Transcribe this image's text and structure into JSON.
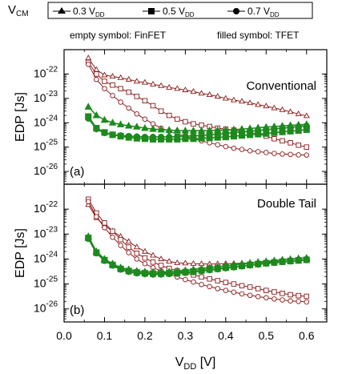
{
  "legend": {
    "title_main": "V",
    "title_sub": "CM",
    "entries": [
      {
        "marker": "triangle",
        "label": "0.3 V",
        "label_sub": "DD"
      },
      {
        "marker": "square",
        "label": "0.5 V",
        "label_sub": "DD"
      },
      {
        "marker": "circle",
        "label": "0.7 V",
        "label_sub": "DD"
      }
    ],
    "note_left": "empty symbol: FinFET",
    "note_right": "filled symbol: TFET"
  },
  "colors": {
    "finfet": "#8b1a1a",
    "tfet": "#1e8a1e",
    "axis": "#000000"
  },
  "chart_data": [
    {
      "type": "line",
      "panel_label": "(a)",
      "title": "Conventional",
      "ylabel": "EDP [Js]",
      "yscale": "log",
      "ylim": [
        3e-27,
        1e-21
      ],
      "yticks": [
        {
          "base": "10",
          "exp": "-22",
          "value": 1e-22
        },
        {
          "base": "10",
          "exp": "-23",
          "value": 1e-23
        },
        {
          "base": "10",
          "exp": "-24",
          "value": 1e-24
        },
        {
          "base": "10",
          "exp": "-25",
          "value": 1e-25
        },
        {
          "base": "10",
          "exp": "-26",
          "value": 1e-26
        }
      ],
      "x": [
        0.06,
        0.08,
        0.1,
        0.12,
        0.14,
        0.16,
        0.18,
        0.2,
        0.22,
        0.24,
        0.26,
        0.28,
        0.3,
        0.32,
        0.34,
        0.36,
        0.38,
        0.4,
        0.42,
        0.44,
        0.46,
        0.48,
        0.5,
        0.52,
        0.54,
        0.56,
        0.58,
        0.6
      ],
      "series": [
        {
          "device": "FinFET",
          "vcm": "0.3 VDD",
          "marker": "triangle",
          "filled": false,
          "values": [
            4.5e-22,
            1.5e-22,
            9e-23,
            8e-23,
            7e-23,
            6e-23,
            5e-23,
            4.5e-23,
            3.8e-23,
            3.3e-23,
            2.8e-23,
            2.5e-23,
            2.2e-23,
            1.9e-23,
            1.6e-23,
            1.4e-23,
            1.2e-23,
            1e-23,
            8.5e-24,
            7.5e-24,
            6.5e-24,
            5.5e-24,
            4.8e-24,
            4e-24,
            3.4e-24,
            2.8e-24,
            2.3e-24,
            1.9e-24
          ]
        },
        {
          "device": "FinFET",
          "vcm": "0.5 VDD",
          "marker": "square",
          "filled": false,
          "values": [
            3e-22,
            1e-22,
            5e-23,
            3.5e-23,
            2.5e-23,
            1.8e-23,
            1.2e-23,
            8e-24,
            5e-24,
            3e-24,
            2e-24,
            1.4e-24,
            1.1e-24,
            9e-25,
            8e-25,
            7e-25,
            6e-25,
            5.5e-25,
            5e-25,
            4.5e-25,
            4e-25,
            3.5e-25,
            2.8e-25,
            2.2e-25,
            1.8e-25,
            1.5e-25,
            1.2e-25,
            1e-25
          ]
        },
        {
          "device": "FinFET",
          "vcm": "0.7 VDD",
          "marker": "circle",
          "filled": false,
          "values": [
            2.5e-22,
            6e-23,
            2.5e-23,
            1.3e-23,
            7e-24,
            4e-24,
            2.3e-24,
            1.4e-24,
            9e-25,
            6e-25,
            4.5e-25,
            3.5e-25,
            2.8e-25,
            2.2e-25,
            1.8e-25,
            1.5e-25,
            1.25e-25,
            1.05e-25,
            9e-26,
            8e-26,
            7e-26,
            6.5e-26,
            6e-26,
            5.5e-26,
            5.2e-26,
            5e-26,
            4.8e-26,
            4.7e-26
          ]
        },
        {
          "device": "TFET",
          "vcm": "0.3 VDD",
          "marker": "triangle",
          "filled": true,
          "values": [
            4.5e-24,
            2e-24,
            1.3e-24,
            1e-24,
            8.5e-25,
            7.5e-25,
            6.8e-25,
            6e-25,
            5.5e-25,
            5.2e-25,
            5e-25,
            4.8e-25,
            4.7e-25,
            4.7e-25,
            4.7e-25,
            4.8e-25,
            4.9e-25,
            5e-25,
            5.2e-25,
            5.5e-25,
            5.8e-25,
            6.2e-25,
            6.6e-25,
            7e-25,
            7.4e-25,
            7.8e-25,
            8.2e-25,
            8.6e-25
          ]
        },
        {
          "device": "TFET",
          "vcm": "0.5 VDD",
          "marker": "square",
          "filled": true,
          "values": [
            1.8e-24,
            6e-25,
            4e-25,
            3.2e-25,
            2.8e-25,
            2.5e-25,
            2.3e-25,
            2.2e-25,
            2.1e-25,
            2.1e-25,
            2.1e-25,
            2.1e-25,
            2.2e-25,
            2.2e-25,
            2.3e-25,
            2.4e-25,
            2.5e-25,
            2.6e-25,
            2.8e-25,
            3e-25,
            3.2e-25,
            3.4e-25,
            3.6e-25,
            3.9e-25,
            4.2e-25,
            4.5e-25,
            4.8e-25,
            5.2e-25
          ]
        },
        {
          "device": "TFET",
          "vcm": "0.7 VDD",
          "marker": "circle",
          "filled": true,
          "values": [
            1.5e-24,
            5.5e-25,
            3.8e-25,
            3.2e-25,
            3e-25,
            2.8e-25,
            2.7e-25,
            2.6e-25,
            2.6e-25,
            2.6e-25,
            2.6e-25,
            2.7e-25,
            2.8e-25,
            2.9e-25,
            3e-25,
            3.2e-25,
            3.4e-25,
            3.6e-25,
            3.9e-25,
            4.2e-25,
            4.5e-25,
            4.8e-25,
            5.2e-25,
            5.6e-25,
            6e-25,
            6.5e-25,
            7e-25,
            7.5e-25
          ]
        }
      ]
    },
    {
      "type": "line",
      "panel_label": "(b)",
      "title": "Double Tail",
      "ylabel": "EDP [Js]",
      "xlabel_main": "V",
      "xlabel_sub": "DD",
      "xlabel_unit": " [V]",
      "yscale": "log",
      "ylim": [
        3e-27,
        1e-21
      ],
      "xlim": [
        0.0,
        0.65
      ],
      "xticks": [
        "0.0",
        "0.1",
        "0.2",
        "0.3",
        "0.4",
        "0.5",
        "0.6"
      ],
      "yticks": [
        {
          "base": "10",
          "exp": "-22",
          "value": 1e-22
        },
        {
          "base": "10",
          "exp": "-23",
          "value": 1e-23
        },
        {
          "base": "10",
          "exp": "-24",
          "value": 1e-24
        },
        {
          "base": "10",
          "exp": "-25",
          "value": 1e-25
        },
        {
          "base": "10",
          "exp": "-26",
          "value": 1e-26
        }
      ],
      "x": [
        0.06,
        0.08,
        0.1,
        0.12,
        0.14,
        0.16,
        0.18,
        0.2,
        0.22,
        0.24,
        0.26,
        0.28,
        0.3,
        0.32,
        0.34,
        0.36,
        0.38,
        0.4,
        0.42,
        0.44,
        0.46,
        0.48,
        0.5,
        0.52,
        0.54,
        0.56,
        0.58,
        0.6
      ],
      "series": [
        {
          "device": "FinFET",
          "vcm": "0.3 VDD",
          "marker": "triangle",
          "filled": false,
          "values": [
            1.5e-22,
            4.5e-23,
            2.2e-23,
            1.3e-23,
            8e-24,
            5e-24,
            3e-24,
            2e-24,
            1.4e-24,
            1e-24,
            8e-25,
            7e-25,
            6.8e-25,
            6.5e-25,
            6.4e-25,
            6.3e-25,
            6.4e-25,
            6.5e-25,
            6.6e-25,
            6.8e-25,
            7e-25,
            7.2e-25,
            7.5e-25,
            7.8e-25,
            8e-25,
            8.3e-25,
            8.6e-25,
            9e-25
          ]
        },
        {
          "device": "FinFET",
          "vcm": "0.5 VDD",
          "marker": "square",
          "filled": false,
          "values": [
            2.5e-22,
            7e-23,
            2.8e-23,
            1.3e-23,
            6e-24,
            3e-24,
            1.7e-24,
            1.1e-24,
            7.5e-25,
            5.5e-25,
            4.2e-25,
            3.4e-25,
            2.8e-25,
            2.3e-25,
            1.9e-25,
            1.6e-25,
            1.35e-25,
            1.15e-25,
            1e-25,
            8.5e-26,
            7.5e-26,
            6.5e-26,
            5.5e-26,
            4.8e-26,
            4.2e-26,
            3.7e-26,
            3.4e-26,
            3.2e-26
          ]
        },
        {
          "device": "FinFET",
          "vcm": "0.7 VDD",
          "marker": "circle",
          "filled": false,
          "values": [
            2e-22,
            5e-23,
            1.8e-23,
            7.5e-24,
            3.5e-24,
            1.8e-24,
            1e-24,
            6.5e-25,
            4.5e-25,
            3.3e-25,
            2.5e-25,
            1.9e-25,
            1.5e-25,
            1.2e-25,
            9.5e-26,
            7.8e-26,
            6.5e-26,
            5.5e-26,
            4.7e-26,
            4e-26,
            3.5e-26,
            3.1e-26,
            2.8e-26,
            2.5e-26,
            2.3e-26,
            2.1e-26,
            2e-26,
            1.9e-26
          ]
        },
        {
          "device": "TFET",
          "vcm": "0.3 VDD",
          "marker": "triangle",
          "filled": true,
          "values": [
            8e-24,
            2e-24,
            1e-24,
            6.5e-25,
            4.5e-25,
            3.8e-25,
            3.3e-25,
            3.1e-25,
            3e-25,
            3e-25,
            3.1e-25,
            3.3e-25,
            3.5e-25,
            3.8e-25,
            4.1e-25,
            4.5e-25,
            4.9e-25,
            5.3e-25,
            5.8e-25,
            6.3e-25,
            6.9e-25,
            7.5e-25,
            8e-25,
            8.6e-25,
            9.2e-25,
            9.8e-25,
            1.05e-24,
            1.1e-24
          ]
        },
        {
          "device": "TFET",
          "vcm": "0.5 VDD",
          "marker": "square",
          "filled": true,
          "values": [
            7e-24,
            1.8e-24,
            9e-25,
            5.8e-25,
            4e-25,
            3.3e-25,
            2.9e-25,
            2.7e-25,
            2.6e-25,
            2.6e-25,
            2.7e-25,
            2.8e-25,
            3e-25,
            3.2e-25,
            3.5e-25,
            3.8e-25,
            4.1e-25,
            4.5e-25,
            4.9e-25,
            5.3e-25,
            5.8e-25,
            6.3e-25,
            6.8e-25,
            7.3e-25,
            7.8e-25,
            8.3e-25,
            8.8e-25,
            9.3e-25
          ]
        },
        {
          "device": "TFET",
          "vcm": "0.7 VDD",
          "marker": "circle",
          "filled": true,
          "values": [
            6.5e-24,
            1.7e-24,
            8.5e-25,
            5.5e-25,
            3.8e-25,
            3.1e-25,
            2.7e-25,
            2.5e-25,
            2.4e-25,
            2.4e-25,
            2.5e-25,
            2.6e-25,
            2.8e-25,
            3e-25,
            3.3e-25,
            3.6e-25,
            3.9e-25,
            4.3e-25,
            4.7e-25,
            5.1e-25,
            5.6e-25,
            6.1e-25,
            6.6e-25,
            7.1e-25,
            7.6e-25,
            8.1e-25,
            8.6e-25,
            9.1e-25
          ]
        }
      ]
    }
  ]
}
